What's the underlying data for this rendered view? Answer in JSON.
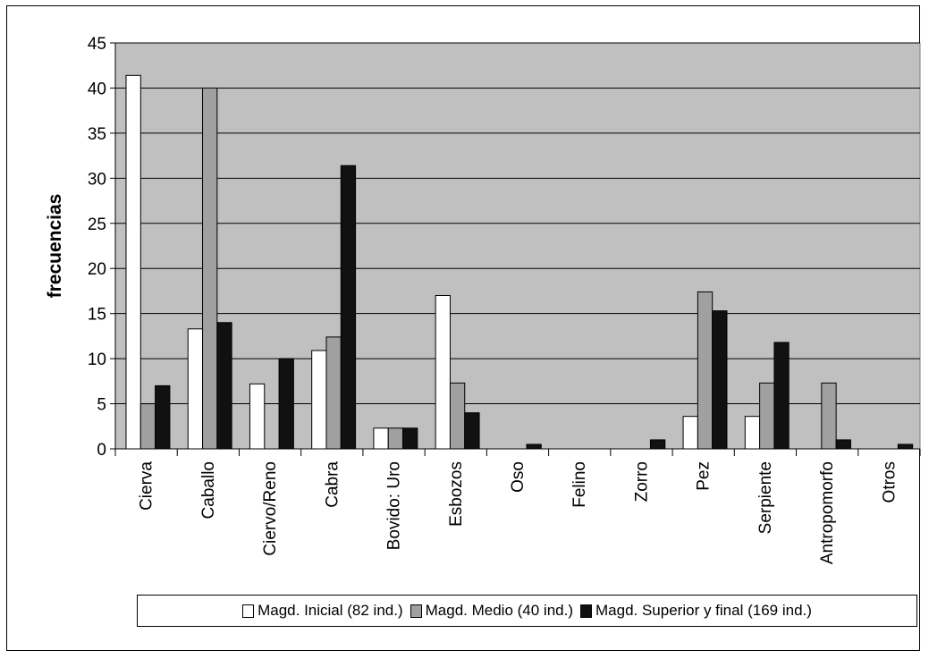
{
  "chart_data": {
    "type": "bar",
    "title": "",
    "xlabel": "",
    "ylabel": "frecuencias",
    "ylim": [
      0,
      45
    ],
    "yticks": [
      0,
      5,
      10,
      15,
      20,
      25,
      30,
      35,
      40,
      45
    ],
    "grid": true,
    "legend_position": "bottom",
    "categories": [
      "Cierva",
      "Caballo",
      "Ciervo/Reno",
      "Cabra",
      "Bovido: Uro",
      "Esbozos",
      "Oso",
      "Felino",
      "Zorro",
      "Pez",
      "Serpiente",
      "Antropomorfo",
      "Otros"
    ],
    "series": [
      {
        "name": "Magd. Inicial (82 ind.)",
        "color": "#ffffff",
        "values": [
          41.4,
          13.3,
          7.2,
          10.9,
          2.3,
          17.0,
          0,
          0,
          0,
          3.6,
          3.6,
          0,
          0
        ]
      },
      {
        "name": "Magd. Medio (40 ind.)",
        "color": "#a0a0a0",
        "values": [
          5.0,
          40.0,
          0,
          12.4,
          2.3,
          7.3,
          0,
          0,
          0,
          17.4,
          7.3,
          7.3,
          0
        ]
      },
      {
        "name": "Magd. Superior y final (169 ind.)",
        "color": "#111111",
        "values": [
          7.0,
          14.0,
          10.0,
          31.4,
          2.3,
          4.0,
          0.5,
          0,
          1.0,
          15.3,
          11.8,
          1.0,
          0.5
        ]
      }
    ],
    "plot_background": "#c0c0c0"
  }
}
